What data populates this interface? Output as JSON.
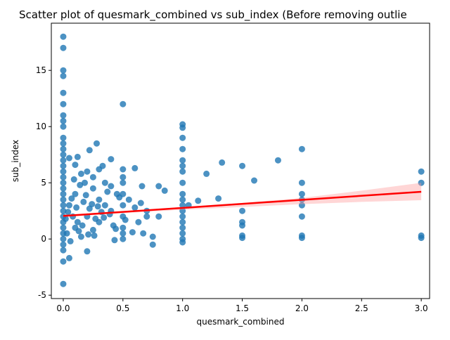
{
  "chart_data": {
    "type": "scatter",
    "title": "Scatter plot of quesmark_combined vs sub_index (Before removing outlie",
    "x_label": "quesmark_combined",
    "y_label": "sub_index",
    "xlim": [
      -0.1,
      3.07
    ],
    "ylim": [
      -5.3,
      19.2
    ],
    "xticks": [
      {
        "value": 0,
        "label": "0.0"
      },
      {
        "value": 0.5,
        "label": "0.5"
      },
      {
        "value": 1,
        "label": "1.0"
      },
      {
        "value": 1.5,
        "label": "1.5"
      },
      {
        "value": 2,
        "label": "2.0"
      },
      {
        "value": 2.5,
        "label": "2.5"
      },
      {
        "value": 3,
        "label": "3.0"
      }
    ],
    "yticks": [
      -5,
      0,
      5,
      10,
      15
    ],
    "scatter": {
      "color": "#1f77b4",
      "x": [
        0,
        0,
        0,
        0,
        0,
        0,
        0,
        0,
        0,
        0,
        0,
        0,
        0,
        0,
        0,
        0,
        0,
        0,
        0,
        0,
        0,
        0,
        0,
        0,
        0,
        0,
        0,
        0,
        0,
        0,
        0,
        0,
        0.5,
        0.5,
        0.5,
        0.5,
        0.5,
        0.5,
        0.5,
        0.5,
        0.5,
        0.5,
        1,
        1,
        1,
        1,
        1,
        1,
        1,
        1,
        1,
        1,
        1,
        1,
        1,
        1,
        1,
        1,
        1,
        1,
        1.5,
        1.5,
        1.5,
        1.5,
        1.5,
        1.5,
        2,
        2,
        2,
        2,
        2,
        2,
        2,
        2,
        3,
        3,
        3,
        3,
        0.05,
        0.2,
        0.43,
        0.75,
        0.75,
        0.8,
        0.8,
        0.85,
        0.7,
        0.66,
        0.6,
        0.28,
        0.22,
        0.4,
        0.33,
        1.2,
        1.33,
        1.6,
        1.8,
        1.3,
        1.13,
        1.05,
        0.12,
        0.05,
        0.1,
        0.15,
        0.18,
        0.25,
        0.3,
        0.35,
        0.2,
        0.1,
        0.15,
        0.25,
        0.3,
        0.4,
        0.45,
        0.55,
        0.6,
        0.65,
        0.7,
        0.1,
        0.05,
        0.08,
        0.12,
        0.03,
        0.06,
        0.17,
        0.22,
        0.27,
        0.32,
        0.37,
        0.42,
        0.47,
        0.52,
        0.58,
        0.63,
        0.67,
        0.2,
        0.25,
        0.3,
        0.35,
        0.4,
        0.14,
        0.09,
        0.19,
        0.24,
        0.29,
        0.34,
        0.39,
        0.44,
        0.02,
        0.04,
        0.07,
        0.11,
        0.13,
        0.16,
        0.21,
        0.26
      ],
      "y": [
        18,
        17,
        15,
        14.5,
        13,
        12,
        11,
        10.5,
        10,
        9,
        8.5,
        8,
        7.5,
        7,
        6.5,
        6,
        5.5,
        5,
        4.5,
        4,
        3.5,
        3,
        2.5,
        2,
        1.5,
        1,
        0.5,
        0,
        -0.5,
        -1,
        -2,
        -4,
        12,
        6.2,
        5.5,
        5,
        4,
        3,
        2,
        1,
        0.5,
        0,
        10.2,
        9.9,
        9,
        8,
        7,
        6.5,
        6,
        5,
        4,
        3.5,
        3,
        2.5,
        2,
        1.5,
        1,
        0.5,
        0,
        -0.3,
        6.5,
        2.5,
        1.5,
        1.2,
        0.3,
        0.1,
        8,
        5,
        4,
        3.5,
        3,
        2,
        0.3,
        0.1,
        6,
        5,
        0.3,
        0.1,
        -1.7,
        -1.1,
        -0.1,
        -0.5,
        0.2,
        2,
        4.7,
        4.3,
        2,
        4.7,
        6.3,
        8.5,
        7.9,
        7.1,
        6.5,
        5.8,
        6.8,
        5.2,
        7,
        3.6,
        3.4,
        3,
        7.3,
        7.2,
        6.6,
        5.8,
        5,
        4.5,
        3.5,
        3,
        2,
        1,
        0.2,
        0.8,
        1.5,
        2.5,
        4,
        3.5,
        2.8,
        3.2,
        2.5,
        4,
        3,
        2,
        1.5,
        0.5,
        -0.2,
        3.3,
        2.7,
        1.8,
        2.4,
        4.2,
        1.2,
        3.7,
        1.7,
        0.6,
        1.5,
        0.5,
        6,
        5.5,
        6.2,
        5,
        4.7,
        4.8,
        5.3,
        3.9,
        3.1,
        2.9,
        1.9,
        2.2,
        0.9,
        1.8,
        2.4,
        3.6,
        2.8,
        0.7,
        1.2,
        0.4,
        0.3
      ]
    },
    "regression": {
      "color": "#ff0000",
      "band_color": "#ff9999",
      "x": [
        0,
        3
      ],
      "y": [
        2.05,
        4.2
      ],
      "band_x": [
        0,
        0.5,
        1,
        1.5,
        2,
        2.5,
        3
      ],
      "band_lower": [
        1.95,
        2.3,
        2.6,
        2.85,
        3.1,
        3.3,
        3.45
      ],
      "band_upper": [
        2.15,
        2.45,
        2.85,
        3.2,
        3.65,
        4.3,
        5.0
      ]
    }
  }
}
